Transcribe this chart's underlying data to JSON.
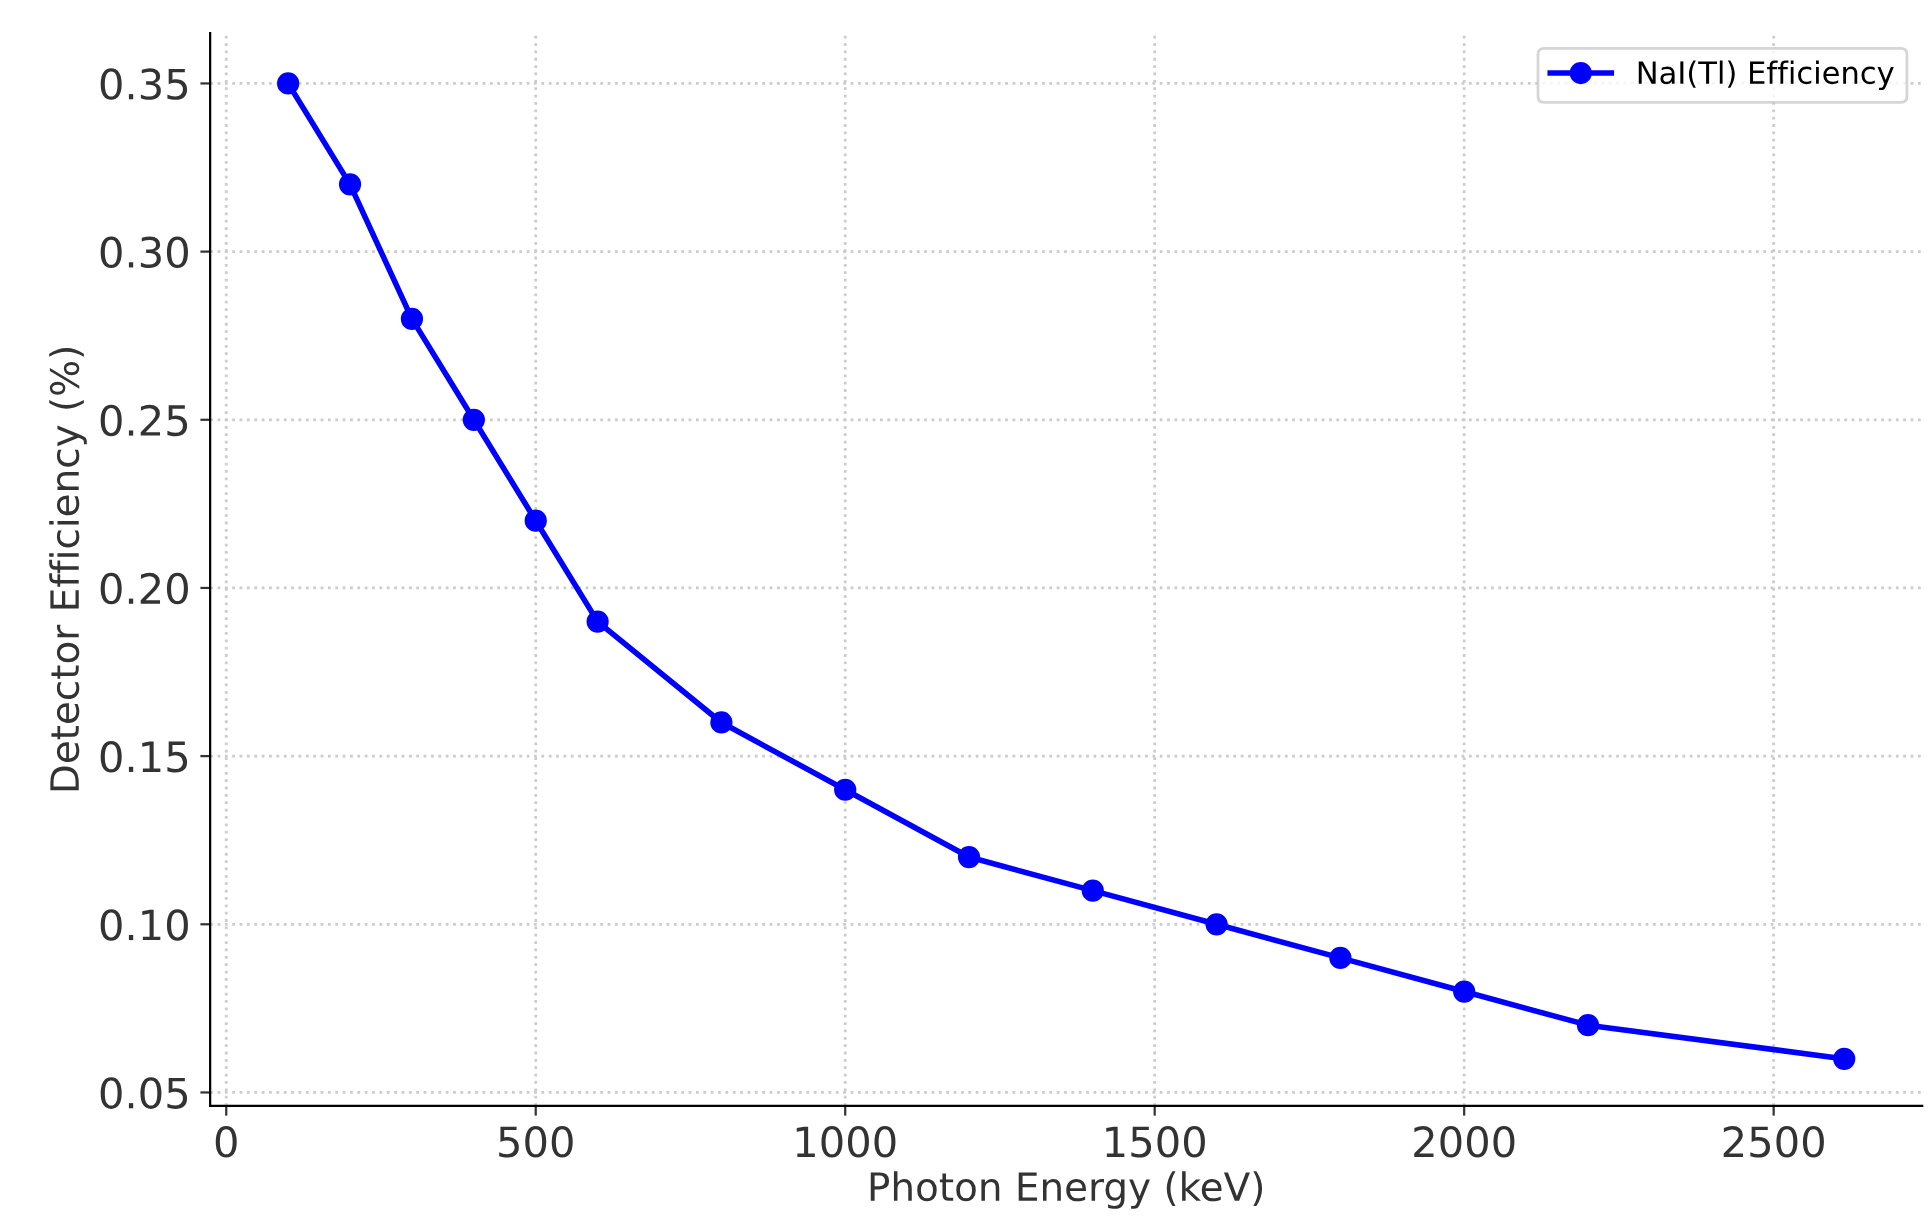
{
  "chart_data": {
    "type": "line",
    "xlabel": "Photon Energy (keV)",
    "ylabel": "Detector Efficiency (%)",
    "x": [
      100,
      200,
      300,
      400,
      500,
      600,
      800,
      1000,
      1200,
      1400,
      1600,
      1800,
      2000,
      2200,
      2614
    ],
    "series": [
      {
        "name": "NaI(Tl) Efficiency",
        "color": "#0000ff",
        "values": [
          0.35,
          0.32,
          0.28,
          0.25,
          0.22,
          0.19,
          0.16,
          0.14,
          0.12,
          0.11,
          0.1,
          0.09,
          0.08,
          0.07,
          0.06
        ]
      }
    ],
    "xlim": [
      -26,
      2740
    ],
    "ylim": [
      0.046,
      0.365
    ],
    "xticks": [
      0,
      500,
      1000,
      1500,
      2000,
      2500
    ],
    "yticks": [
      {
        "value": 0.05,
        "label": "0.05"
      },
      {
        "value": 0.1,
        "label": "0.10"
      },
      {
        "value": 0.15,
        "label": "0.15"
      },
      {
        "value": 0.2,
        "label": "0.20"
      },
      {
        "value": 0.25,
        "label": "0.25"
      },
      {
        "value": 0.3,
        "label": "0.30"
      },
      {
        "value": 0.35,
        "label": "0.35"
      }
    ],
    "grid": true,
    "legend": "top right",
    "marker": "circle",
    "line_style": "solid"
  }
}
